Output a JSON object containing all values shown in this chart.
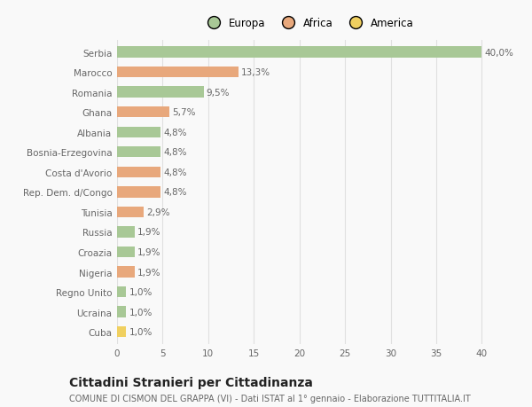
{
  "categories": [
    "Serbia",
    "Marocco",
    "Romania",
    "Ghana",
    "Albania",
    "Bosnia-Erzegovina",
    "Costa d'Avorio",
    "Rep. Dem. d/Congo",
    "Tunisia",
    "Russia",
    "Croazia",
    "Nigeria",
    "Regno Unito",
    "Ucraina",
    "Cuba"
  ],
  "values": [
    40.0,
    13.3,
    9.5,
    5.7,
    4.8,
    4.8,
    4.8,
    4.8,
    2.9,
    1.9,
    1.9,
    1.9,
    1.0,
    1.0,
    1.0
  ],
  "labels": [
    "40,0%",
    "13,3%",
    "9,5%",
    "5,7%",
    "4,8%",
    "4,8%",
    "4,8%",
    "4,8%",
    "2,9%",
    "1,9%",
    "1,9%",
    "1,9%",
    "1,0%",
    "1,0%",
    "1,0%"
  ],
  "continents": [
    "Europa",
    "Africa",
    "Europa",
    "Africa",
    "Europa",
    "Europa",
    "Africa",
    "Africa",
    "Africa",
    "Europa",
    "Europa",
    "Africa",
    "Europa",
    "Europa",
    "America"
  ],
  "colors": {
    "Europa": "#a8c896",
    "Africa": "#e8a87c",
    "America": "#f0d060"
  },
  "xlim": [
    0,
    42
  ],
  "xticks": [
    0,
    5,
    10,
    15,
    20,
    25,
    30,
    35,
    40
  ],
  "title": "Cittadini Stranieri per Cittadinanza",
  "subtitle": "COMUNE DI CISMON DEL GRAPPA (VI) - Dati ISTAT al 1° gennaio - Elaborazione TUTTITALIA.IT",
  "background_color": "#f9f9f9",
  "grid_color": "#e0e0e0",
  "bar_height": 0.55,
  "label_fontsize": 7.5,
  "tick_fontsize": 7.5,
  "title_fontsize": 10,
  "subtitle_fontsize": 7.0,
  "legend_order": [
    "Europa",
    "Africa",
    "America"
  ]
}
